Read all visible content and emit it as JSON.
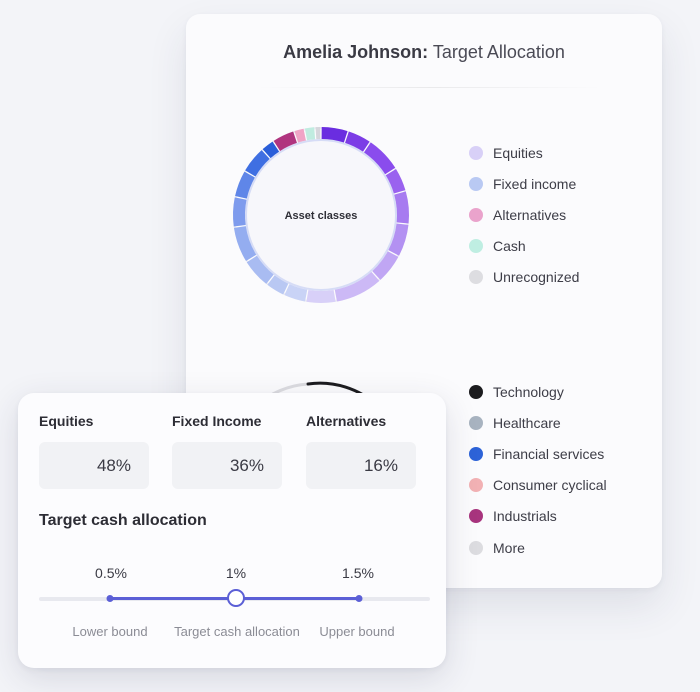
{
  "header": {
    "client_name": "Amelia Johnson:",
    "title": "Target Allocation"
  },
  "asset_chart": {
    "center_label": "Asset classes",
    "legend": [
      {
        "label": "Equities",
        "color": "#d8d0f7"
      },
      {
        "label": "Fixed income",
        "color": "#b9c9f3"
      },
      {
        "label": "Alternatives",
        "color": "#eaa3cc"
      },
      {
        "label": "Cash",
        "color": "#bfeee2"
      },
      {
        "label": "Unrecognized",
        "color": "#dddde1"
      }
    ]
  },
  "sector_chart": {
    "legend": [
      {
        "label": "Technology",
        "color": "#1c1c1f"
      },
      {
        "label": "Healthcare",
        "color": "#a8b3c0"
      },
      {
        "label": "Financial services",
        "color": "#2d63d8"
      },
      {
        "label": "Consumer cyclical",
        "color": "#f2b1b4"
      },
      {
        "label": "Industrials",
        "color": "#a8347e"
      },
      {
        "label": "More",
        "color": "#dcdce0"
      }
    ]
  },
  "allocations": [
    {
      "label": "Equities",
      "value": "48%"
    },
    {
      "label": "Fixed Income",
      "value": "36%"
    },
    {
      "label": "Alternatives",
      "value": "16%"
    }
  ],
  "cash": {
    "title": "Target cash allocation",
    "lower": {
      "value": "0.5%",
      "caption": "Lower bound"
    },
    "target": {
      "value": "1%",
      "caption": "Target cash allocation"
    },
    "upper": {
      "value": "1.5%",
      "caption": "Upper bound"
    }
  }
}
